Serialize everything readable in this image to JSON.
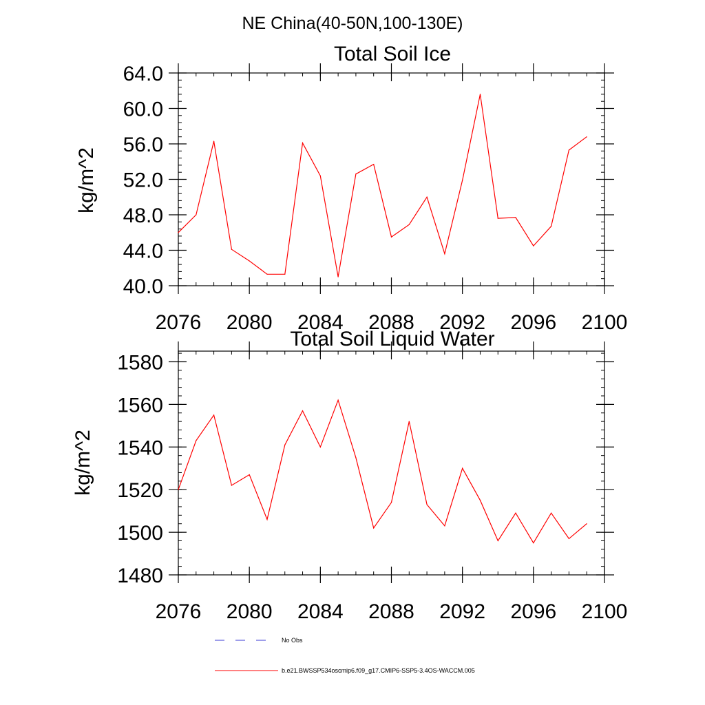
{
  "page_title": "NE China(40-50N,100-130E)",
  "chart_data": [
    {
      "type": "line",
      "title": "Total Soil Ice",
      "ylabel": "kg/m^2",
      "xlabel": "",
      "xlim": [
        2076,
        2100
      ],
      "ylim": [
        40,
        64
      ],
      "x_ticks": [
        2076,
        2080,
        2084,
        2088,
        2092,
        2096,
        2100
      ],
      "y_ticks": [
        40,
        44,
        48,
        52,
        56,
        60,
        64
      ],
      "x_tick_labels": [
        "2076",
        "2080",
        "2084",
        "2088",
        "2092",
        "2096",
        "2100"
      ],
      "y_tick_labels": [
        "40.0",
        "44.0",
        "48.0",
        "52.0",
        "56.0",
        "60.0",
        "64.0"
      ],
      "grid": false,
      "x": [
        2076,
        2077,
        2078,
        2079,
        2080,
        2081,
        2082,
        2083,
        2084,
        2085,
        2086,
        2087,
        2088,
        2089,
        2090,
        2091,
        2092,
        2093,
        2094,
        2095,
        2096,
        2097,
        2098,
        2099
      ],
      "series": [
        {
          "name": "b.e21.BWSSP534oscmip6.f09_g17.CMIP6-SSP5-3.4OS-WACCM.005",
          "color": "#ff0000",
          "values": [
            46.0,
            48.0,
            56.3,
            44.1,
            42.8,
            41.3,
            41.3,
            56.1,
            52.4,
            41.0,
            52.6,
            53.7,
            45.5,
            46.9,
            50.0,
            43.6,
            51.9,
            61.6,
            47.6,
            47.7,
            44.5,
            46.7,
            55.3,
            56.8
          ]
        }
      ]
    },
    {
      "type": "line",
      "title": "Total Soil Liquid Water",
      "ylabel": "kg/m^2",
      "xlabel": "",
      "xlim": [
        2076,
        2100
      ],
      "ylim": [
        1480,
        1585
      ],
      "x_ticks": [
        2076,
        2080,
        2084,
        2088,
        2092,
        2096,
        2100
      ],
      "y_ticks": [
        1480,
        1500,
        1520,
        1540,
        1560,
        1580
      ],
      "x_tick_labels": [
        "2076",
        "2080",
        "2084",
        "2088",
        "2092",
        "2096",
        "2100"
      ],
      "y_tick_labels": [
        "1480",
        "1500",
        "1520",
        "1540",
        "1560",
        "1580"
      ],
      "grid": false,
      "x": [
        2076,
        2077,
        2078,
        2079,
        2080,
        2081,
        2082,
        2083,
        2084,
        2085,
        2086,
        2087,
        2088,
        2089,
        2090,
        2091,
        2092,
        2093,
        2094,
        2095,
        2096,
        2097,
        2098,
        2099
      ],
      "series": [
        {
          "name": "b.e21.BWSSP534oscmip6.f09_g17.CMIP6-SSP5-3.4OS-WACCM.005",
          "color": "#ff0000",
          "values": [
            1520,
            1543,
            1555,
            1522,
            1527,
            1506,
            1541,
            1557,
            1540,
            1562,
            1535,
            1502,
            1514,
            1552,
            1513,
            1503,
            1530,
            1515,
            1496,
            1509,
            1495,
            1509,
            1497,
            1504
          ]
        }
      ]
    }
  ],
  "legend": {
    "placement": "bottom",
    "items": [
      {
        "label": "No Obs",
        "color": "#3b3bd6",
        "style": "dashed"
      },
      {
        "label": "b.e21.BWSSP534oscmip6.f09_g17.CMIP6-SSP5-3.4OS-WACCM.005",
        "color": "#ff0000",
        "style": "solid"
      }
    ]
  }
}
